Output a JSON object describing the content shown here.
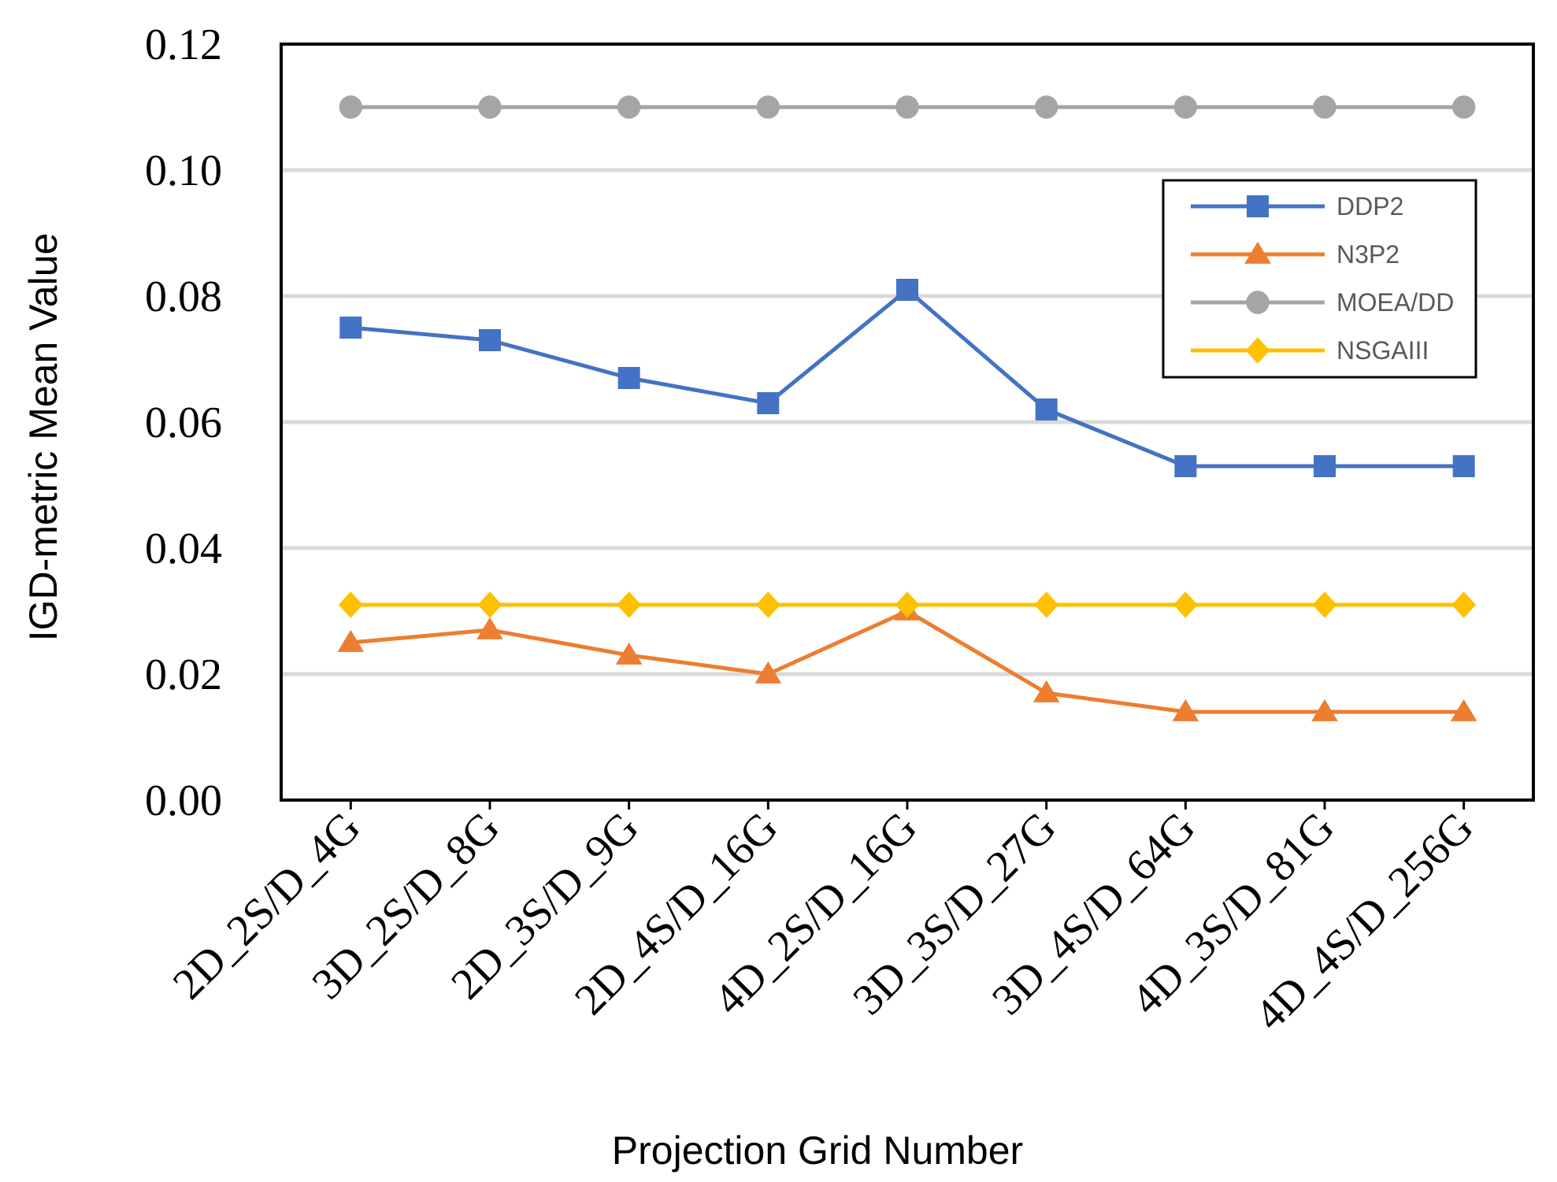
{
  "chart_data": {
    "type": "line",
    "title": "",
    "xlabel": "Projection Grid Number",
    "ylabel": "IGD-metric Mean Value",
    "ylim": [
      0,
      0.12
    ],
    "yticks": [
      "0.00",
      "0.02",
      "0.04",
      "0.06",
      "0.08",
      "0.10",
      "0.12"
    ],
    "grid": true,
    "legend_position": "top-right",
    "categories": [
      "2D_2S/D_4G",
      "3D_2S/D_8G",
      "2D_3S/D_9G",
      "2D_4S/D_16G",
      "4D_2S/D_16G",
      "3D_3S/D_27G",
      "3D_4S/D_64G",
      "4D_3S/D_81G",
      "4D_4S/D_256G"
    ],
    "series": [
      {
        "name": "DDP2",
        "marker": "square",
        "color": "#4472C4",
        "values": [
          0.075,
          0.073,
          0.067,
          0.063,
          0.081,
          0.062,
          0.053,
          0.053,
          0.053
        ]
      },
      {
        "name": "N3P2",
        "marker": "triangle",
        "color": "#ED7D31",
        "values": [
          0.025,
          0.027,
          0.023,
          0.02,
          0.03,
          0.017,
          0.014,
          0.014,
          0.014
        ]
      },
      {
        "name": "MOEA/DD",
        "marker": "circle",
        "color": "#A5A5A5",
        "values": [
          0.11,
          0.11,
          0.11,
          0.11,
          0.11,
          0.11,
          0.11,
          0.11,
          0.11
        ]
      },
      {
        "name": "NSGAIII",
        "marker": "diamond",
        "color": "#FFC000",
        "values": [
          0.031,
          0.031,
          0.031,
          0.031,
          0.031,
          0.031,
          0.031,
          0.031,
          0.031
        ]
      }
    ]
  }
}
